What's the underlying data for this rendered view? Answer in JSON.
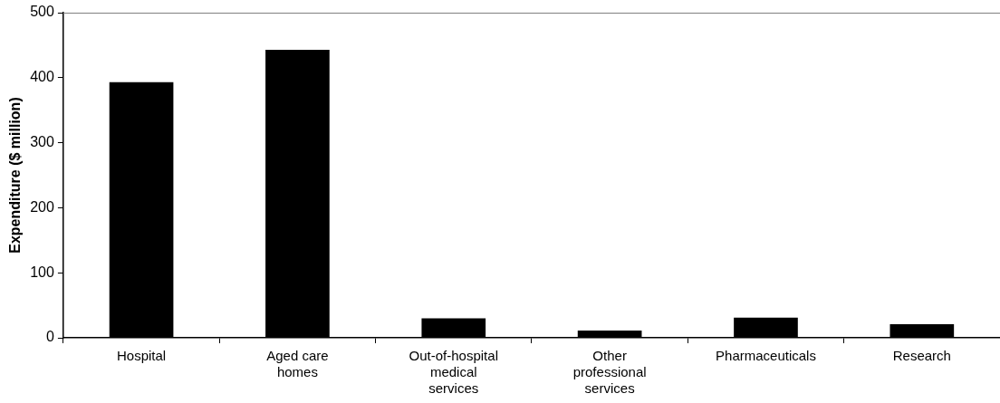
{
  "chart_data": {
    "type": "bar",
    "ylabel": "Expenditure ($ million)",
    "categories": [
      "Hospital",
      "Aged care homes",
      "Out-of-hospital medical services",
      "Other professional services",
      "Pharmaceuticals",
      "Research"
    ],
    "values": [
      393,
      443,
      30,
      11,
      31,
      21
    ],
    "color": "#000000",
    "ylim": [
      0,
      500
    ],
    "yticks": [
      0,
      100,
      200,
      300,
      400,
      500
    ],
    "grid": false,
    "legend": false
  }
}
